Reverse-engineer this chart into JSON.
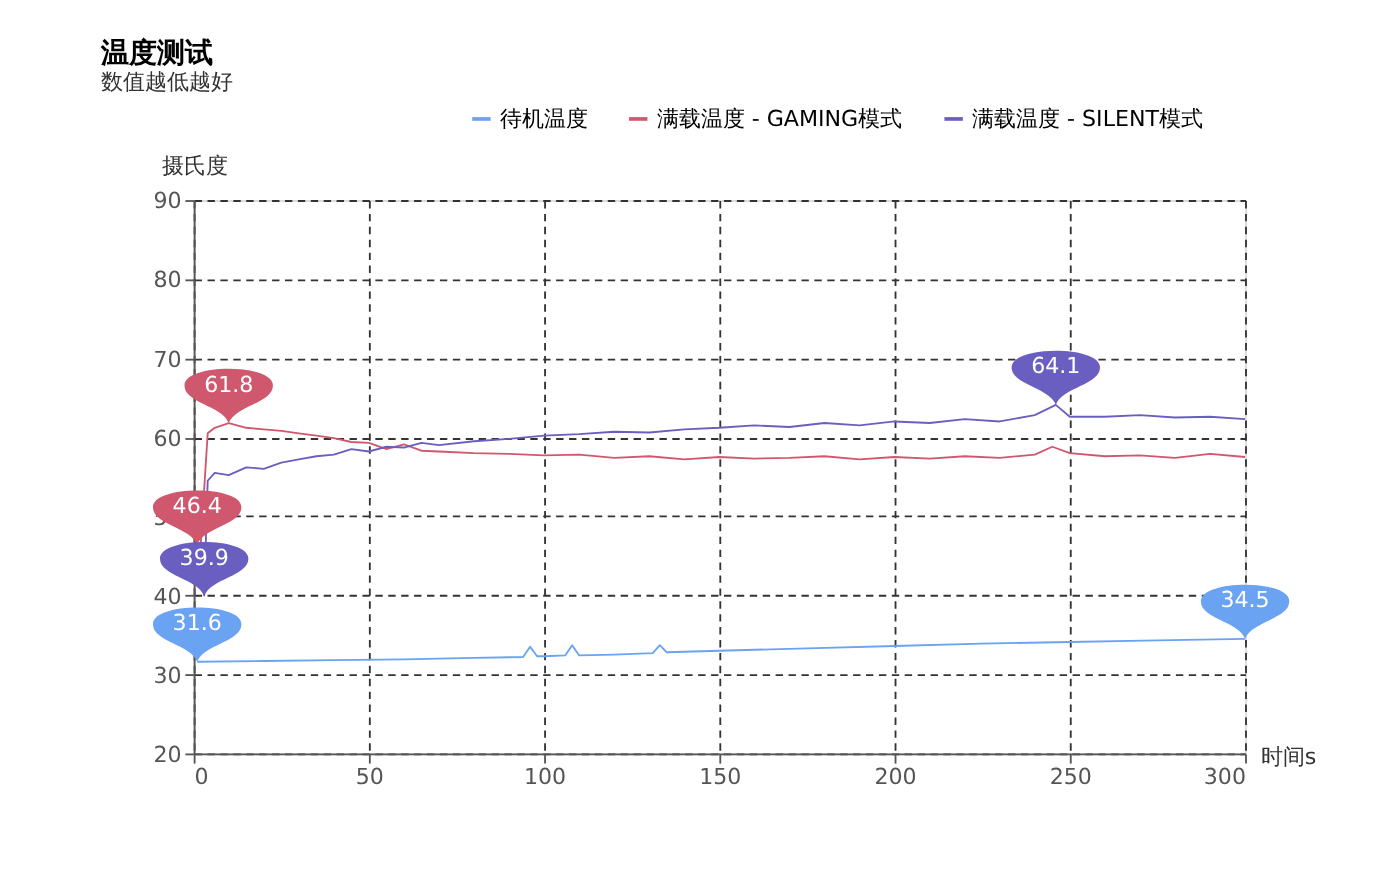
{
  "chart_data": {
    "type": "line",
    "title": "温度测试",
    "subtitle": "数值越低越好",
    "xlabel": "时间s",
    "ylabel": "摄氏度",
    "xlim": [
      0,
      300
    ],
    "xticks": [
      0,
      50,
      100,
      150,
      200,
      250,
      300
    ],
    "ylim": [
      20,
      90
    ],
    "yticks": [
      20,
      30,
      40,
      50,
      60,
      70,
      80,
      90
    ],
    "grid": true,
    "legend": "top right",
    "marker": "none",
    "line_style": "solid",
    "series": [
      {
        "name": "待机温度",
        "color": "#6aa3f2",
        "x": [
          1,
          20,
          40,
          60,
          80,
          94,
          96,
          98,
          100,
          106,
          108,
          110,
          120,
          131,
          133,
          135,
          150,
          175,
          200,
          225,
          250,
          275,
          300
        ],
        "values": [
          31.6,
          31.7,
          31.8,
          31.9,
          32.1,
          32.2,
          33.5,
          32.3,
          32.3,
          32.4,
          33.7,
          32.4,
          32.5,
          32.7,
          33.7,
          32.8,
          33,
          33.3,
          33.6,
          33.9,
          34.1,
          34.3,
          34.5
        ]
      },
      {
        "name": "满载温度 - GAMING模式",
        "color": "#d0586e",
        "x": [
          1,
          2,
          4,
          6,
          10,
          15,
          20,
          25,
          30,
          35,
          40,
          45,
          50,
          55,
          60,
          65,
          70,
          80,
          90,
          100,
          110,
          120,
          130,
          140,
          150,
          160,
          170,
          180,
          190,
          200,
          210,
          220,
          230,
          240,
          245,
          250,
          260,
          270,
          280,
          290,
          300
        ],
        "values": [
          46.4,
          46.4,
          60.5,
          61.2,
          61.8,
          61.2,
          61,
          60.8,
          60.5,
          60.2,
          59.9,
          59.4,
          59.3,
          58.5,
          59.1,
          58.3,
          58.2,
          58,
          57.9,
          57.7,
          57.8,
          57.4,
          57.6,
          57.2,
          57.5,
          57.3,
          57.4,
          57.6,
          57.2,
          57.5,
          57.3,
          57.6,
          57.4,
          57.8,
          58.8,
          58,
          57.6,
          57.7,
          57.4,
          57.9,
          57.5
        ]
      },
      {
        "name": "满载温度 - SILENT模式",
        "color": "#6a5fc0",
        "x": [
          3,
          4,
          6,
          10,
          15,
          20,
          25,
          30,
          35,
          40,
          45,
          50,
          55,
          60,
          65,
          70,
          80,
          90,
          100,
          110,
          120,
          130,
          140,
          150,
          160,
          170,
          180,
          190,
          200,
          210,
          220,
          230,
          240,
          246,
          250,
          260,
          270,
          280,
          290,
          300
        ],
        "values": [
          39.9,
          54.5,
          55.5,
          55.2,
          56.2,
          56,
          56.8,
          57.2,
          57.6,
          57.8,
          58.5,
          58.2,
          58.8,
          58.7,
          59.3,
          59,
          59.5,
          59.8,
          60.2,
          60.4,
          60.7,
          60.6,
          61,
          61.2,
          61.5,
          61.3,
          61.8,
          61.5,
          62,
          61.8,
          62.3,
          62,
          62.8,
          64.1,
          62.6,
          62.6,
          62.8,
          62.5,
          62.6,
          62.3
        ]
      }
    ],
    "annotations": [
      {
        "text": "31.6",
        "x": 1,
        "y": 31.6
      },
      {
        "text": "34.5",
        "x": 300,
        "y": 34.5
      },
      {
        "text": "46.4",
        "x": 1,
        "y": 46.4
      },
      {
        "text": "61.8",
        "x": 10,
        "y": 61.8
      },
      {
        "text": "39.9",
        "x": 3,
        "y": 39.9
      },
      {
        "text": "64.1",
        "x": 246,
        "y": 64.1
      }
    ]
  }
}
